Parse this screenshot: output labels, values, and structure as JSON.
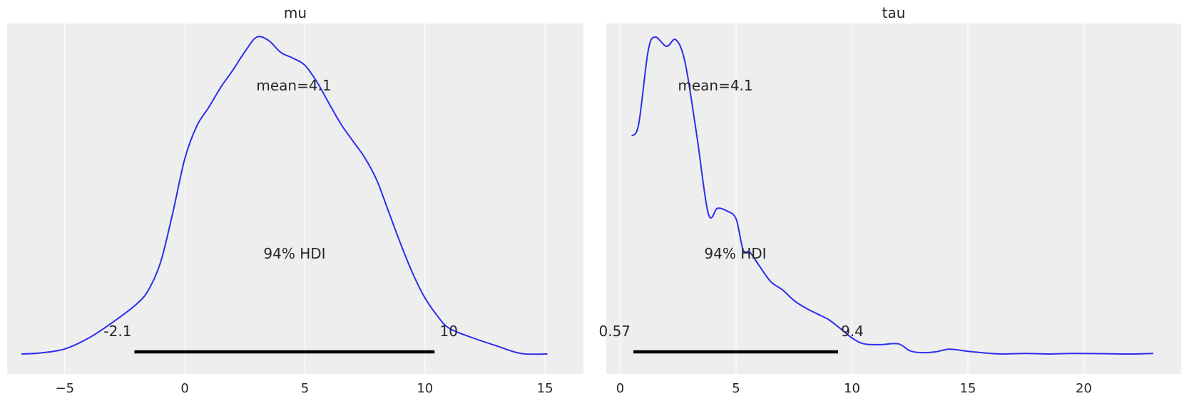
{
  "colors": {
    "line": "#2a2eec",
    "axes_bg": "#eeeeee",
    "hdi": "#000000"
  },
  "chart_data": [
    {
      "type": "line",
      "title": "mu",
      "xlim": [
        -7.4,
        16.6
      ],
      "xticks": [
        -5,
        0,
        5,
        10,
        15
      ],
      "xtick_labels": [
        "−5",
        "0",
        "5",
        "10",
        "15"
      ],
      "grid": true,
      "mean_label": "mean=4.1",
      "hdi_label": "94% HDI",
      "hdi": {
        "low": -2.1,
        "high": 10.4,
        "low_label": "-2.1",
        "high_label": "10"
      },
      "density": {
        "x": [
          -6.8,
          -6,
          -5,
          -4,
          -3,
          -2,
          -1.5,
          -1,
          -0.5,
          0,
          0.5,
          1,
          1.5,
          2,
          2.5,
          3,
          3.5,
          4,
          4.5,
          5,
          5.5,
          6,
          6.5,
          7,
          7.5,
          8,
          8.5,
          9,
          9.5,
          10,
          10.5,
          11,
          12,
          13,
          14,
          15.1
        ],
        "y": [
          0.0,
          0.004,
          0.019,
          0.06,
          0.119,
          0.188,
          0.242,
          0.347,
          0.53,
          0.732,
          0.855,
          0.925,
          1.0,
          1.064,
          1.133,
          1.188,
          1.174,
          1.13,
          1.109,
          1.082,
          1.02,
          0.94,
          0.862,
          0.798,
          0.735,
          0.65,
          0.53,
          0.41,
          0.3,
          0.21,
          0.145,
          0.097,
          0.06,
          0.03,
          0.002,
          0.0
        ]
      }
    },
    {
      "type": "line",
      "title": "tau",
      "xlim": [
        -0.6,
        24.2
      ],
      "xticks": [
        0,
        5,
        10,
        15,
        20
      ],
      "xtick_labels": [
        "0",
        "5",
        "10",
        "15",
        "20"
      ],
      "grid": true,
      "mean_label": "mean=4.1",
      "hdi_label": "94% HDI",
      "hdi": {
        "low": 0.57,
        "high": 9.4,
        "low_label": "0.57",
        "high_label": "9.4"
      },
      "density": {
        "x": [
          0.5,
          0.8,
          1.2,
          1.5,
          2.0,
          2.4,
          2.8,
          3.3,
          3.8,
          4.2,
          4.6,
          5.0,
          5.3,
          5.6,
          6.0,
          6.5,
          7.0,
          7.5,
          8.0,
          8.5,
          9.0,
          9.5,
          10.0,
          10.5,
          11.2,
          12.0,
          12.5,
          13.0,
          13.6,
          14.2,
          15.0,
          16.0,
          16.5,
          17.5,
          18.5,
          19.5,
          21.0,
          22.0,
          23.0
        ],
        "y": [
          0.815,
          0.86,
          1.13,
          1.185,
          1.15,
          1.175,
          1.09,
          0.82,
          0.525,
          0.545,
          0.535,
          0.505,
          0.39,
          0.38,
          0.33,
          0.27,
          0.24,
          0.2,
          0.172,
          0.15,
          0.128,
          0.095,
          0.06,
          0.038,
          0.035,
          0.038,
          0.012,
          0.005,
          0.008,
          0.018,
          0.01,
          0.002,
          0.0,
          0.002,
          0.0,
          0.002,
          0.001,
          0.0,
          0.002
        ]
      }
    }
  ]
}
